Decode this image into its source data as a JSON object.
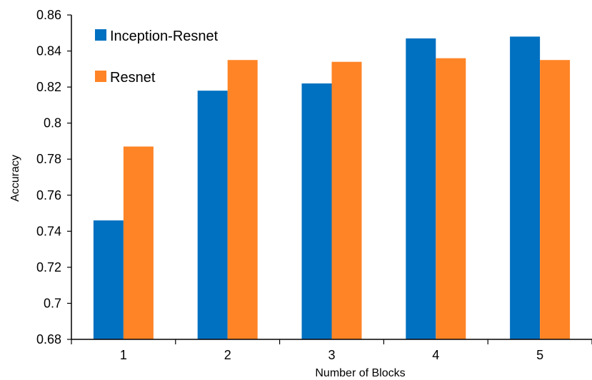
{
  "chart_data": {
    "type": "bar",
    "title": "",
    "xlabel": "Number of Blocks",
    "ylabel": "Accuracy",
    "categories": [
      "1",
      "2",
      "3",
      "4",
      "5"
    ],
    "ylim": [
      0.68,
      0.86
    ],
    "yticks": [
      0.68,
      0.7,
      0.72,
      0.74,
      0.76,
      0.78,
      0.8,
      0.82,
      0.84,
      0.86
    ],
    "ytick_labels": [
      "0.68",
      "0.7",
      "0.72",
      "0.74",
      "0.76",
      "0.78",
      "0.8",
      "0.82",
      "0.84",
      "0.86"
    ],
    "grid": false,
    "legend_position": "top-left",
    "series": [
      {
        "name": "Inception-Resnet",
        "color": "#0070C0",
        "values": [
          0.746,
          0.818,
          0.822,
          0.847,
          0.848
        ]
      },
      {
        "name": "Resnet",
        "color": "#FF8426",
        "values": [
          0.787,
          0.835,
          0.834,
          0.836,
          0.835
        ]
      }
    ]
  }
}
